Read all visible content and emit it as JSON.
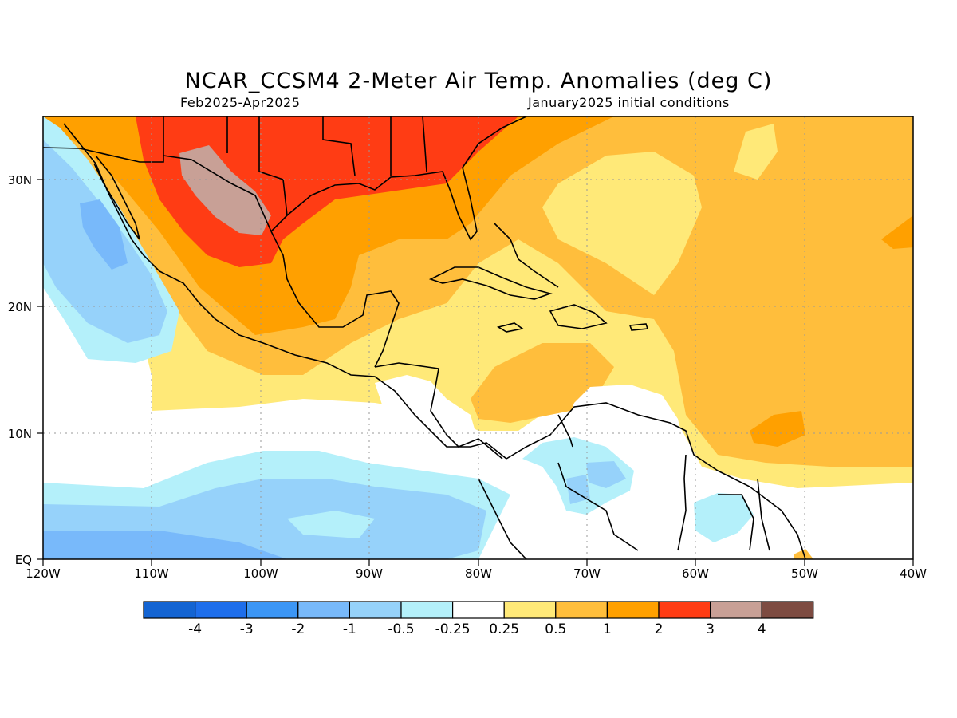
{
  "title": "NCAR_CCSM4 2-Meter Air Temp. Anomalies (deg C)",
  "subtitle_left": "Feb2025-Apr2025",
  "subtitle_right": "January2025 initial conditions",
  "lat_labels": [
    "30N",
    "20N",
    "10N",
    "EQ"
  ],
  "lon_labels": [
    "120W",
    "110W",
    "100W",
    "90W",
    "80W",
    "70W",
    "60W",
    "50W",
    "40W"
  ],
  "colorbar": {
    "colors": [
      "#1464d2",
      "#1e6eeb",
      "#3c96f5",
      "#78b9fa",
      "#96d2fa",
      "#b4f0fa",
      "#ffffff",
      "#ffe978",
      "#ffbe3c",
      "#ffa000",
      "#ff3c14",
      "#c8a096",
      "#7d4b41"
    ],
    "labels": [
      "-4",
      "-3",
      "-2",
      "-1",
      "-0.5",
      "-0.25",
      "0.25",
      "0.5",
      "1",
      "2",
      "3",
      "4"
    ]
  }
}
